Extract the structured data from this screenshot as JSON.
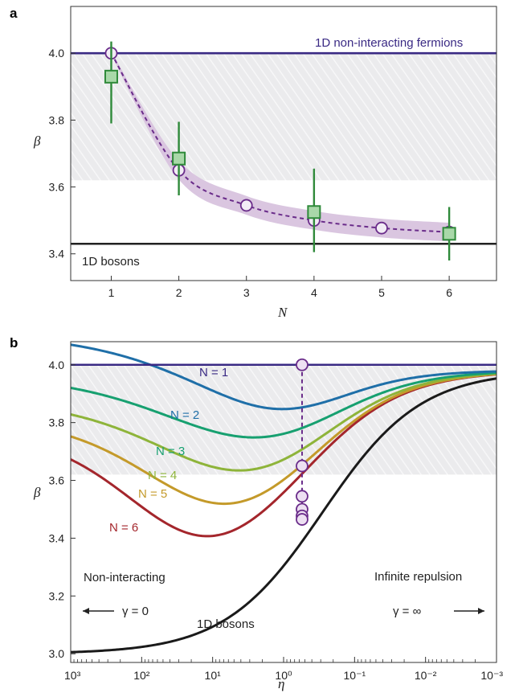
{
  "chart_data": [
    {
      "panel": "a",
      "type": "scatter",
      "xlabel": "N",
      "ylabel": "β",
      "xlim": [
        0.4,
        6.7
      ],
      "ylim": [
        3.32,
        4.14
      ],
      "xticks": [
        1,
        2,
        3,
        4,
        5,
        6
      ],
      "yticks": [
        3.4,
        3.6,
        3.8,
        4.0
      ],
      "ytick_labels": [
        "3.4",
        "3.6",
        "3.8",
        "4.0"
      ],
      "shaded_band": [
        3.62,
        4.0
      ],
      "reference_lines": [
        {
          "name": "1D non-interacting fermions",
          "y": 4.0,
          "color": "#3a2a84"
        },
        {
          "name": "1D bosons",
          "y": 3.43,
          "color": "#222222"
        }
      ],
      "series": [
        {
          "kind": "theory",
          "color": "#6a2c8a",
          "x": [
            1,
            2,
            3,
            4,
            5,
            6
          ],
          "y": [
            4.0,
            3.65,
            3.545,
            3.5,
            3.477,
            3.465
          ],
          "band_halfwidth": 0.028
        },
        {
          "kind": "experiment",
          "color": "#2f8a3a",
          "fill": "#a9d8a9",
          "x": [
            1,
            2,
            4,
            6
          ],
          "y": [
            3.93,
            3.685,
            3.525,
            3.46
          ],
          "err_low": [
            3.79,
            3.575,
            3.405,
            3.38
          ],
          "err_high": [
            4.035,
            3.795,
            3.655,
            3.54
          ]
        }
      ]
    },
    {
      "panel": "b",
      "type": "line",
      "xlabel": "η",
      "ylabel": "β",
      "xscale": "log-reversed",
      "xlim_log10": [
        3,
        -3
      ],
      "ylim": [
        2.97,
        4.08
      ],
      "xtick_labels": [
        "10³",
        "10²",
        "10¹",
        "10⁰",
        "10⁻¹",
        "10⁻²",
        "10⁻³"
      ],
      "xtick_log10": [
        3,
        2,
        1,
        0,
        -1,
        -2,
        -3
      ],
      "yticks": [
        3.0,
        3.2,
        3.4,
        3.6,
        3.8,
        4.0
      ],
      "ytick_labels": [
        "3.0",
        "3.2",
        "3.4",
        "3.6",
        "3.8",
        "4.0"
      ],
      "shaded_band": [
        3.62,
        4.0
      ],
      "vertical_band_log10": [
        -0.36,
        -0.16
      ],
      "vertical_marker_log10": -0.26,
      "markers": [
        4.0,
        3.65,
        3.545,
        3.5,
        3.477,
        3.465
      ],
      "series": [
        {
          "name": "N = 1",
          "N": 1,
          "color": "#3a2a84",
          "beta_inf": 4.0,
          "gamma0": 3.5,
          "width": 0.0
        },
        {
          "name": "N = 2",
          "N": 2,
          "color": "#1f6fa8",
          "beta_inf": 3.65,
          "gamma0": 3.5,
          "width": 1.1
        },
        {
          "name": "N = 3",
          "N": 3,
          "color": "#17a070",
          "beta_inf": 3.545,
          "gamma0": 3.5,
          "width": 1.2
        },
        {
          "name": "N = 4",
          "N": 4,
          "color": "#8eb43a",
          "beta_inf": 3.5,
          "gamma0": 3.5,
          "width": 1.3
        },
        {
          "name": "N = 5",
          "N": 5,
          "color": "#c49a2a",
          "beta_inf": 3.477,
          "gamma0": 3.5,
          "width": 1.35
        },
        {
          "name": "N = 6",
          "N": 6,
          "color": "#a4262c",
          "beta_inf": 3.465,
          "gamma0": 3.5,
          "width": 1.4
        },
        {
          "name": "1D bosons",
          "N": 0,
          "color": "#1a1a1a",
          "beta_inf": 3.0,
          "gamma0": 3.5,
          "width": 1.15
        }
      ],
      "annotations": {
        "left_title": "Non-interacting",
        "left_gamma": "γ = 0",
        "right_title": "Infinite repulsion",
        "right_gamma": "γ = ∞",
        "bosons": "1D bosons"
      }
    }
  ],
  "labels": {
    "panel_a": "a",
    "panel_b": "b",
    "fermions": "1D non-interacting fermions",
    "bosons_a": "1D bosons",
    "n1": "N = 1",
    "n2": "N = 2",
    "n3": "N = 3",
    "n4": "N = 4",
    "n5": "N = 5",
    "n6": "N = 6"
  }
}
